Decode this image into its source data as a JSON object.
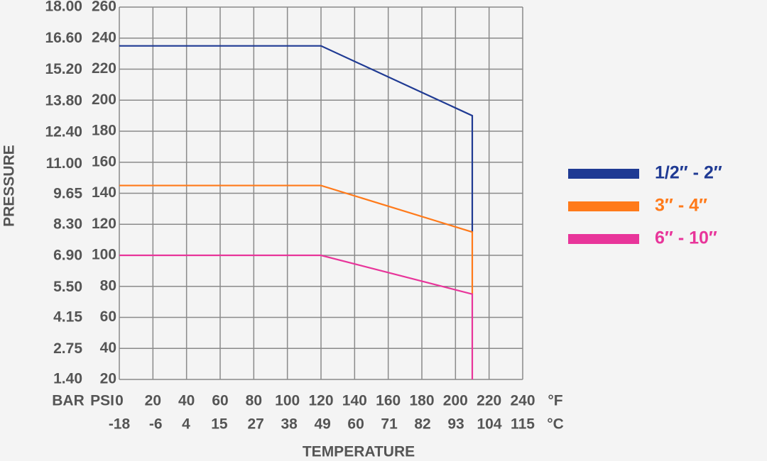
{
  "chart_data": {
    "type": "line",
    "y_label": "PRESSURE",
    "x_label": "TEMPERATURE",
    "y_unit": "PSI",
    "y2_unit": "BAR",
    "x_unit": "°F",
    "x2_unit": "°C",
    "xlim": [
      0,
      240
    ],
    "xticks": [
      0,
      20,
      40,
      60,
      80,
      100,
      120,
      140,
      160,
      180,
      200,
      220,
      240
    ],
    "x2lim": [
      -18,
      115
    ],
    "x2ticks": [
      -18,
      -6,
      4,
      15,
      27,
      38,
      49,
      60,
      71,
      82,
      93,
      104,
      115
    ],
    "ylim": [
      20,
      260
    ],
    "yticks": [
      20,
      40,
      60,
      80,
      100,
      120,
      140,
      160,
      180,
      200,
      220,
      240,
      260
    ],
    "y2lim": [
      1.4,
      18
    ],
    "y2ticks": [
      {
        "value": 1.4,
        "label": "1.40"
      },
      {
        "value": 2.75,
        "label": "2.75"
      },
      {
        "value": 4.15,
        "label": "4.15"
      },
      {
        "value": 5.5,
        "label": "5.50"
      },
      {
        "value": 6.9,
        "label": "6.90"
      },
      {
        "value": 8.3,
        "label": "8.30"
      },
      {
        "value": 9.65,
        "label": "9.65"
      },
      {
        "value": 11,
        "label": "11.00"
      },
      {
        "value": 12.4,
        "label": "12.40"
      },
      {
        "value": 13.8,
        "label": "13.80"
      },
      {
        "value": 15.2,
        "label": "15.20"
      },
      {
        "value": 16.6,
        "label": "16.60"
      },
      {
        "value": 18,
        "label": "18.00"
      }
    ],
    "grid": true,
    "legend": "right",
    "series": [
      {
        "name": "1/2″ - 2″",
        "color": "#1f3a93",
        "x": [
          0,
          120,
          210,
          210
        ],
        "values": [
          235,
          235,
          190,
          115
        ]
      },
      {
        "name": "3″ - 4″",
        "color": "#ff7a1a",
        "x": [
          0,
          120,
          210,
          210
        ],
        "values": [
          145,
          145,
          115,
          75
        ]
      },
      {
        "name": "6″ - 10″",
        "color": "#e8359a",
        "x": [
          0,
          120,
          210,
          210
        ],
        "values": [
          100,
          100,
          75,
          20
        ]
      }
    ]
  }
}
